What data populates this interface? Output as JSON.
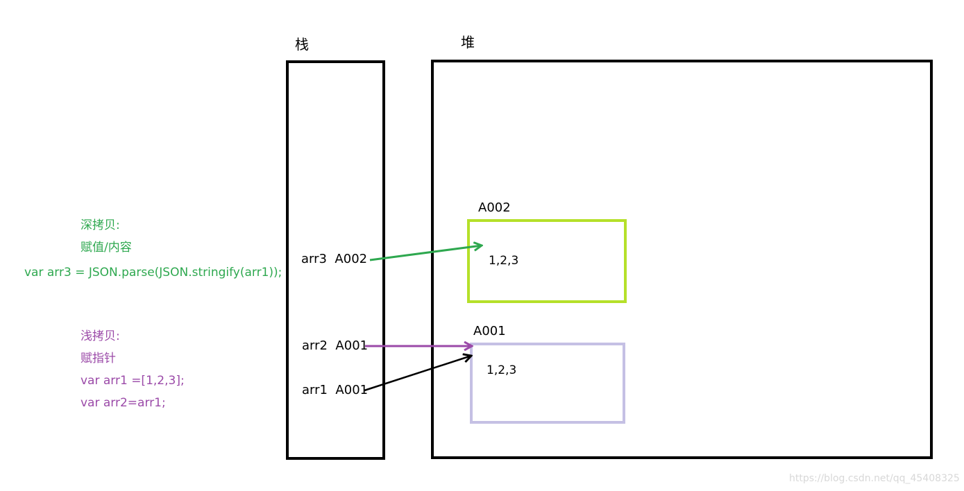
{
  "stack": {
    "title": "栈",
    "entries": [
      {
        "name": "arr3",
        "address": "A002"
      },
      {
        "name": "arr2",
        "address": "A001"
      },
      {
        "name": "arr1",
        "address": "A001"
      }
    ]
  },
  "heap": {
    "title": "堆",
    "blocks": [
      {
        "address": "A002",
        "content": "1,2,3",
        "border_color": "#b5e02a"
      },
      {
        "address": "A001",
        "content": "1,2,3",
        "border_color": "#c5c0e4"
      }
    ]
  },
  "deep_copy": {
    "color": "#2ea84f",
    "heading": "深拷贝:",
    "subheading": "赋值/内容",
    "code": "var arr3 = JSON.parse(JSON.stringify(arr1));"
  },
  "shallow_copy": {
    "color": "#9b4aa8",
    "heading": "浅拷贝:",
    "subheading": "赋指针",
    "code_line1": "var arr1 =[1,2,3];",
    "code_line2": "var arr2=arr1;"
  },
  "watermark": "https://blog.csdn.net/qq_45408325"
}
